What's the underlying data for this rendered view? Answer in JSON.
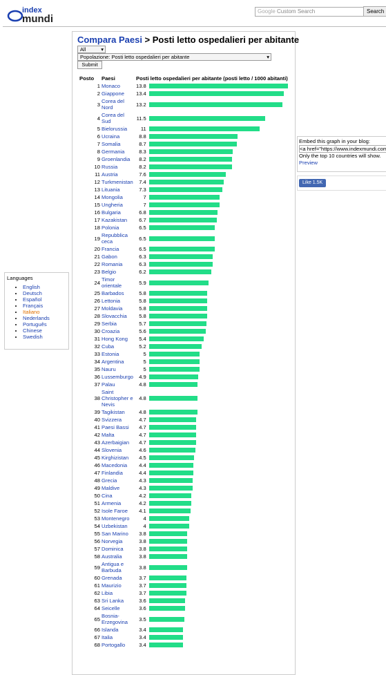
{
  "header": {
    "logo_top": "index",
    "logo_bottom": "mundi",
    "search_placeholder": "Custom Search",
    "search_brand": "Google",
    "search_button": "Search"
  },
  "title": {
    "link": "Compara Paesi",
    "rest": " > Posti letto ospedalieri per abitante"
  },
  "form": {
    "region": "All",
    "indicator": "Popolazione: Posti letto ospedalieri per abitante",
    "submit": "Submit"
  },
  "table": {
    "headers": [
      "Posto",
      "Paesi",
      "Posti letto ospedalieri per abitante (posti letto / 1000 abitanti)"
    ],
    "rows": [
      {
        "rank": 1,
        "country": "Monaco",
        "value": 13.8
      },
      {
        "rank": 2,
        "country": "Giappone",
        "value": 13.4
      },
      {
        "rank": 3,
        "country": "Corea del Nord",
        "value": 13.2
      },
      {
        "rank": 4,
        "country": "Corea del Sud",
        "value": 11.5
      },
      {
        "rank": 5,
        "country": "Bielorussia",
        "value": 11
      },
      {
        "rank": 6,
        "country": "Ucraina",
        "value": 8.8
      },
      {
        "rank": 7,
        "country": "Somalia",
        "value": 8.7
      },
      {
        "rank": 8,
        "country": "Germania",
        "value": 8.3
      },
      {
        "rank": 9,
        "country": "Groenlandia",
        "value": 8.2
      },
      {
        "rank": 10,
        "country": "Russia",
        "value": 8.2
      },
      {
        "rank": 11,
        "country": "Austria",
        "value": 7.6
      },
      {
        "rank": 12,
        "country": "Turkmenistan",
        "value": 7.4
      },
      {
        "rank": 13,
        "country": "Lituania",
        "value": 7.3
      },
      {
        "rank": 14,
        "country": "Mongolia",
        "value": 7
      },
      {
        "rank": 15,
        "country": "Ungheria",
        "value": 7
      },
      {
        "rank": 16,
        "country": "Bulgaria",
        "value": 6.8
      },
      {
        "rank": 17,
        "country": "Kazakistan",
        "value": 6.7
      },
      {
        "rank": 18,
        "country": "Polonia",
        "value": 6.5
      },
      {
        "rank": 19,
        "country": "Repubblica ceca",
        "value": 6.5
      },
      {
        "rank": 20,
        "country": "Francia",
        "value": 6.5
      },
      {
        "rank": 21,
        "country": "Gabon",
        "value": 6.3
      },
      {
        "rank": 22,
        "country": "Romania",
        "value": 6.3
      },
      {
        "rank": 23,
        "country": "Belgio",
        "value": 6.2
      },
      {
        "rank": 24,
        "country": "Timor orientale",
        "value": 5.9
      },
      {
        "rank": 25,
        "country": "Barbados",
        "value": 5.8
      },
      {
        "rank": 26,
        "country": "Lettonia",
        "value": 5.8
      },
      {
        "rank": 27,
        "country": "Moldavia",
        "value": 5.8
      },
      {
        "rank": 28,
        "country": "Slovacchia",
        "value": 5.8
      },
      {
        "rank": 29,
        "country": "Serbia",
        "value": 5.7
      },
      {
        "rank": 30,
        "country": "Croazia",
        "value": 5.6
      },
      {
        "rank": 31,
        "country": "Hong Kong",
        "value": 5.4
      },
      {
        "rank": 32,
        "country": "Cuba",
        "value": 5.2
      },
      {
        "rank": 33,
        "country": "Estonia",
        "value": 5
      },
      {
        "rank": 34,
        "country": "Argentina",
        "value": 5
      },
      {
        "rank": 35,
        "country": "Nauru",
        "value": 5
      },
      {
        "rank": 36,
        "country": "Lussemburgo",
        "value": 4.9
      },
      {
        "rank": 37,
        "country": "Palau",
        "value": 4.8
      },
      {
        "rank": 38,
        "country": "Saint Christopher e Nevis",
        "value": 4.8
      },
      {
        "rank": 39,
        "country": "Tagikistan",
        "value": 4.8
      },
      {
        "rank": 40,
        "country": "Svizzera",
        "value": 4.7
      },
      {
        "rank": 41,
        "country": "Paesi Bassi",
        "value": 4.7
      },
      {
        "rank": 42,
        "country": "Malta",
        "value": 4.7
      },
      {
        "rank": 43,
        "country": "Azerbaigian",
        "value": 4.7
      },
      {
        "rank": 44,
        "country": "Slovenia",
        "value": 4.6
      },
      {
        "rank": 45,
        "country": "Kirghizistan",
        "value": 4.5
      },
      {
        "rank": 46,
        "country": "Macedonia",
        "value": 4.4
      },
      {
        "rank": 47,
        "country": "Finlandia",
        "value": 4.4
      },
      {
        "rank": 48,
        "country": "Grecia",
        "value": 4.3
      },
      {
        "rank": 49,
        "country": "Maldive",
        "value": 4.3
      },
      {
        "rank": 50,
        "country": "Cina",
        "value": 4.2
      },
      {
        "rank": 51,
        "country": "Armenia",
        "value": 4.2
      },
      {
        "rank": 52,
        "country": "Isole Faroe",
        "value": 4.1
      },
      {
        "rank": 53,
        "country": "Montenegro",
        "value": 4
      },
      {
        "rank": 54,
        "country": "Uzbekistan",
        "value": 4
      },
      {
        "rank": 55,
        "country": "San Marino",
        "value": 3.8
      },
      {
        "rank": 56,
        "country": "Norvegia",
        "value": 3.8
      },
      {
        "rank": 57,
        "country": "Dominica",
        "value": 3.8
      },
      {
        "rank": 58,
        "country": "Australia",
        "value": 3.8
      },
      {
        "rank": 59,
        "country": "Antigua e Barbuda",
        "value": 3.8
      },
      {
        "rank": 60,
        "country": "Grenada",
        "value": 3.7
      },
      {
        "rank": 61,
        "country": "Maurizio",
        "value": 3.7
      },
      {
        "rank": 62,
        "country": "Libia",
        "value": 3.7
      },
      {
        "rank": 63,
        "country": "Sri Lanka",
        "value": 3.6
      },
      {
        "rank": 64,
        "country": "Seicelle",
        "value": 3.6
      },
      {
        "rank": 65,
        "country": "Bosnia-Erzegovina",
        "value": 3.5
      },
      {
        "rank": 66,
        "country": "Islanda",
        "value": 3.4
      },
      {
        "rank": 67,
        "country": "Italia",
        "value": 3.4
      },
      {
        "rank": 68,
        "country": "Portogallo",
        "value": 3.4
      }
    ],
    "bar_color": "#22dd88"
  },
  "embed": {
    "label": "Embed this graph in your blog:",
    "code": "<a href=\"https://www.indexmundi.com",
    "note": "Only the top 10 countries will show.",
    "preview": "Preview"
  },
  "like": {
    "label": "Like",
    "count": "1.5K"
  },
  "languages": {
    "title": "Languages",
    "items": [
      "English",
      "Deutsch",
      "Español",
      "Français",
      "Italiano",
      "Nederlands",
      "Português",
      "Chinese",
      "Swedish"
    ],
    "current": "Italiano"
  }
}
